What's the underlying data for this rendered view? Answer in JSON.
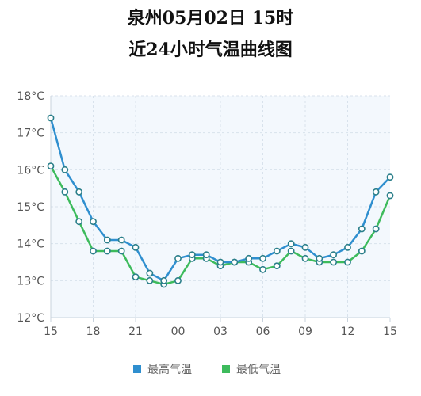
{
  "header": {
    "title_line1": "泉州05月02日 15时",
    "title_line2": "近24小时气温曲线图"
  },
  "chart_data": {
    "type": "line",
    "title": "泉州05月02日 15时 近24小时气温曲线图",
    "x_tick_labels": [
      "15",
      "18",
      "21",
      "00",
      "03",
      "06",
      "09",
      "12",
      "15"
    ],
    "y_tick_labels": [
      "12°C",
      "13°C",
      "14°C",
      "15°C",
      "16°C",
      "17°C",
      "18°C"
    ],
    "ylim": [
      12,
      18
    ],
    "x_count": 25,
    "grid": true,
    "legend_position": "bottom",
    "colors": {
      "high": "#2f8fcf",
      "low": "#3dbb5c",
      "marker_fill": "#ffffff",
      "marker_stroke": "#2b7f8a"
    },
    "series": [
      {
        "name": "最高气温",
        "color": "#2f8fcf",
        "values": [
          17.4,
          16.0,
          15.4,
          14.6,
          14.1,
          14.1,
          13.9,
          13.2,
          13.0,
          13.6,
          13.7,
          13.7,
          13.5,
          13.5,
          13.6,
          13.6,
          13.8,
          14.0,
          13.9,
          13.6,
          13.7,
          13.9,
          14.4,
          15.4,
          15.8
        ]
      },
      {
        "name": "最低气温",
        "color": "#3dbb5c",
        "values": [
          16.1,
          15.4,
          14.6,
          13.8,
          13.8,
          13.8,
          13.1,
          13.0,
          12.9,
          13.0,
          13.6,
          13.6,
          13.4,
          13.5,
          13.5,
          13.3,
          13.4,
          13.8,
          13.6,
          13.5,
          13.5,
          13.5,
          13.8,
          14.4,
          15.3
        ]
      }
    ]
  }
}
